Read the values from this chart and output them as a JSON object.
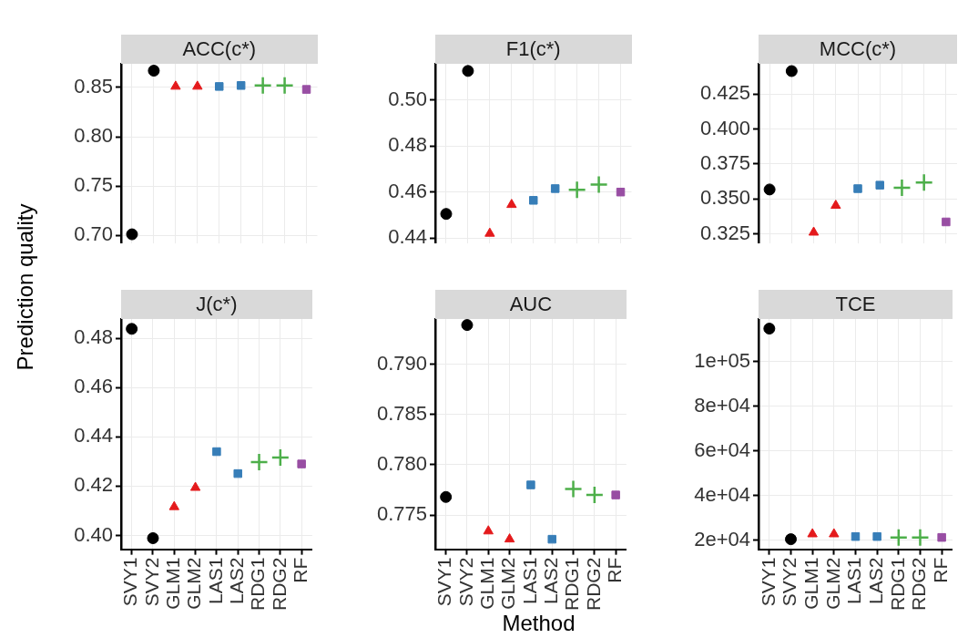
{
  "chart_data": [
    {
      "type": "scatter",
      "title": "ACC(c*)",
      "ylabel": "Prediction quality",
      "categories": [
        null,
        null,
        null,
        null,
        null,
        null,
        null,
        null,
        null
      ],
      "ylim": [
        0.692,
        0.874
      ],
      "yticks": [
        {
          "value": 0.7,
          "label": "0.70"
        },
        {
          "value": 0.75,
          "label": "0.75"
        },
        {
          "value": 0.8,
          "label": "0.80"
        },
        {
          "value": 0.85,
          "label": "0.85"
        }
      ],
      "grid": true,
      "tick_labels": "y",
      "series": [
        {
          "color": "#000000",
          "marker": "circle",
          "values": [
            0.701,
            0.867,
            null,
            null,
            null,
            null,
            null,
            null,
            null
          ]
        },
        {
          "color": "#e41a1c",
          "marker": "triangle",
          "values": [
            null,
            null,
            0.851,
            0.851,
            null,
            null,
            null,
            null,
            null
          ]
        },
        {
          "color": "#377eb8",
          "marker": "square",
          "values": [
            null,
            null,
            null,
            null,
            0.851,
            0.852,
            null,
            null,
            null
          ]
        },
        {
          "color": "#4daf4a",
          "marker": "cross",
          "values": [
            null,
            null,
            null,
            null,
            null,
            null,
            0.852,
            0.852,
            null
          ]
        },
        {
          "color": "#984ea3",
          "marker": "square",
          "values": [
            null,
            null,
            null,
            null,
            null,
            null,
            null,
            null,
            0.848
          ]
        }
      ]
    },
    {
      "type": "scatter",
      "title": "F1(c*)",
      "categories": [
        null,
        null,
        null,
        null,
        null,
        null,
        null,
        null,
        null
      ],
      "ylim": [
        0.4378,
        0.5157
      ],
      "yticks": [
        {
          "value": 0.44,
          "label": "0.44"
        },
        {
          "value": 0.46,
          "label": "0.46"
        },
        {
          "value": 0.48,
          "label": "0.48"
        },
        {
          "value": 0.5,
          "label": "0.50"
        }
      ],
      "grid": true,
      "tick_labels": "y",
      "series": [
        {
          "color": "#000000",
          "marker": "circle",
          "values": [
            0.4505,
            0.5126,
            null,
            null,
            null,
            null,
            null,
            null,
            null
          ]
        },
        {
          "color": "#e41a1c",
          "marker": "triangle",
          "values": [
            null,
            null,
            0.442,
            0.4545,
            null,
            null,
            null,
            null,
            null
          ]
        },
        {
          "color": "#377eb8",
          "marker": "square",
          "values": [
            null,
            null,
            null,
            null,
            0.4564,
            0.4615,
            null,
            null,
            null
          ]
        },
        {
          "color": "#4daf4a",
          "marker": "cross",
          "values": [
            null,
            null,
            null,
            null,
            null,
            null,
            0.461,
            0.4633,
            null
          ]
        },
        {
          "color": "#984ea3",
          "marker": "square",
          "values": [
            null,
            null,
            null,
            null,
            null,
            null,
            null,
            null,
            0.46
          ]
        }
      ]
    },
    {
      "type": "scatter",
      "title": "MCC(c*)",
      "categories": [
        null,
        null,
        null,
        null,
        null,
        null,
        null,
        null,
        null
      ],
      "ylim": [
        0.3183,
        0.4466
      ],
      "yticks": [
        {
          "value": 0.325,
          "label": "0.325"
        },
        {
          "value": 0.35,
          "label": "0.350"
        },
        {
          "value": 0.375,
          "label": "0.375"
        },
        {
          "value": 0.4,
          "label": "0.400"
        },
        {
          "value": 0.425,
          "label": "0.425"
        }
      ],
      "grid": true,
      "tick_labels": "y",
      "series": [
        {
          "color": "#000000",
          "marker": "circle",
          "values": [
            0.3567,
            0.4414,
            null,
            null,
            null,
            null,
            null,
            null,
            null
          ]
        },
        {
          "color": "#e41a1c",
          "marker": "triangle",
          "values": [
            null,
            null,
            0.326,
            0.3452,
            null,
            null,
            null,
            null,
            null
          ]
        },
        {
          "color": "#377eb8",
          "marker": "square",
          "values": [
            null,
            null,
            null,
            null,
            0.3573,
            0.3598,
            null,
            null,
            null
          ]
        },
        {
          "color": "#4daf4a",
          "marker": "cross",
          "values": [
            null,
            null,
            null,
            null,
            null,
            null,
            0.358,
            0.3617,
            null
          ]
        },
        {
          "color": "#984ea3",
          "marker": "square",
          "values": [
            null,
            null,
            null,
            null,
            null,
            null,
            null,
            null,
            0.3335
          ]
        }
      ]
    },
    {
      "type": "scatter",
      "title": "J(c*)",
      "categories": [
        "SVY1",
        "SVY2",
        "GLM1",
        "GLM2",
        "LAS1",
        "LAS2",
        "RDG1",
        "RDG2",
        "RF"
      ],
      "ylim": [
        0.3944,
        0.4878
      ],
      "yticks": [
        {
          "value": 0.4,
          "label": "0.40"
        },
        {
          "value": 0.42,
          "label": "0.42"
        },
        {
          "value": 0.44,
          "label": "0.44"
        },
        {
          "value": 0.46,
          "label": "0.46"
        },
        {
          "value": 0.48,
          "label": "0.48"
        }
      ],
      "grid": true,
      "series": [
        {
          "color": "#000000",
          "marker": "circle",
          "values": [
            0.4838,
            0.3989,
            null,
            null,
            null,
            null,
            null,
            null,
            null
          ]
        },
        {
          "color": "#e41a1c",
          "marker": "triangle",
          "values": [
            null,
            null,
            0.4116,
            0.4194,
            null,
            null,
            null,
            null,
            null
          ]
        },
        {
          "color": "#377eb8",
          "marker": "square",
          "values": [
            null,
            null,
            null,
            null,
            0.434,
            0.4251,
            null,
            null,
            null
          ]
        },
        {
          "color": "#4daf4a",
          "marker": "cross",
          "values": [
            null,
            null,
            null,
            null,
            null,
            null,
            0.4298,
            0.4316,
            null
          ]
        },
        {
          "color": "#984ea3",
          "marker": "square",
          "values": [
            null,
            null,
            null,
            null,
            null,
            null,
            null,
            null,
            0.429
          ]
        }
      ]
    },
    {
      "type": "scatter",
      "title": "AUC",
      "xlabel": "Method",
      "categories": [
        "SVY1",
        "SVY2",
        "GLM1",
        "GLM2",
        "LAS1",
        "LAS2",
        "RDG1",
        "RDG2",
        "RF"
      ],
      "ylim": [
        0.7716,
        0.7945
      ],
      "yticks": [
        {
          "value": 0.775,
          "label": "0.775"
        },
        {
          "value": 0.78,
          "label": "0.780"
        },
        {
          "value": 0.785,
          "label": "0.785"
        },
        {
          "value": 0.79,
          "label": "0.790"
        }
      ],
      "grid": true,
      "series": [
        {
          "color": "#000000",
          "marker": "circle",
          "values": [
            0.7768,
            0.7939,
            null,
            null,
            null,
            null,
            null,
            null,
            null
          ]
        },
        {
          "color": "#e41a1c",
          "marker": "triangle",
          "values": [
            null,
            null,
            0.7734,
            0.7726,
            null,
            null,
            null,
            null,
            null
          ]
        },
        {
          "color": "#377eb8",
          "marker": "square",
          "values": [
            null,
            null,
            null,
            null,
            0.778,
            0.7726,
            null,
            null,
            null
          ]
        },
        {
          "color": "#4daf4a",
          "marker": "cross",
          "values": [
            null,
            null,
            null,
            null,
            null,
            null,
            0.7776,
            0.777,
            null
          ]
        },
        {
          "color": "#984ea3",
          "marker": "square",
          "values": [
            null,
            null,
            null,
            null,
            null,
            null,
            null,
            null,
            0.777
          ]
        }
      ]
    },
    {
      "type": "scatter",
      "title": "TCE",
      "categories": [
        "SVY1",
        "SVY2",
        "GLM1",
        "GLM2",
        "LAS1",
        "LAS2",
        "RDG1",
        "RDG2",
        "RF"
      ],
      "ylim": [
        16000,
        119000
      ],
      "yticks": [
        {
          "value": 20000,
          "label": "2e+04"
        },
        {
          "value": 40000,
          "label": "4e+04"
        },
        {
          "value": 60000,
          "label": "6e+04"
        },
        {
          "value": 80000,
          "label": "8e+04"
        },
        {
          "value": 100000,
          "label": "1e+05"
        }
      ],
      "grid": true,
      "series": [
        {
          "color": "#000000",
          "marker": "circle",
          "values": [
            114700,
            20500,
            null,
            null,
            null,
            null,
            null,
            null,
            null
          ]
        },
        {
          "color": "#e41a1c",
          "marker": "triangle",
          "values": [
            null,
            null,
            22800,
            22800,
            null,
            null,
            null,
            null,
            null
          ]
        },
        {
          "color": "#377eb8",
          "marker": "square",
          "values": [
            null,
            null,
            null,
            null,
            21700,
            21700,
            null,
            null,
            null
          ]
        },
        {
          "color": "#4daf4a",
          "marker": "cross",
          "values": [
            null,
            null,
            null,
            null,
            null,
            null,
            21300,
            21300,
            null
          ]
        },
        {
          "color": "#984ea3",
          "marker": "square",
          "values": [
            null,
            null,
            null,
            null,
            null,
            null,
            null,
            null,
            21300
          ]
        }
      ]
    }
  ]
}
